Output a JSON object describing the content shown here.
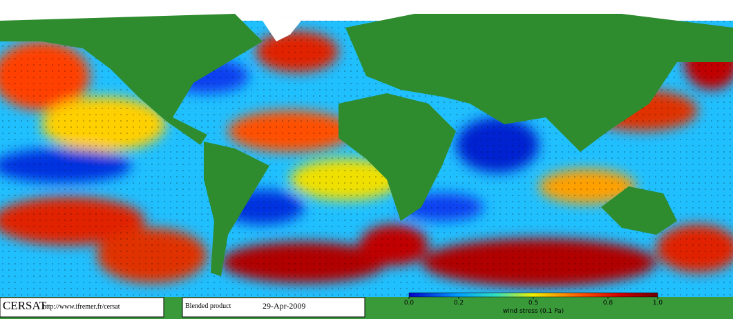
{
  "footer": {
    "logo": "CERSAT",
    "url": "http://www.ifremer.fr/cersat",
    "product": "Blended product",
    "date": "29-Apr-2009"
  },
  "colorbar": {
    "label": "wind stress (0.1 Pa)",
    "lim": [
      0,
      1
    ],
    "ticks": [
      {
        "value": 0,
        "label": "0.0"
      },
      0.2,
      0.5,
      0.8,
      {
        "value": 1,
        "label": "1.0"
      }
    ]
  }
}
